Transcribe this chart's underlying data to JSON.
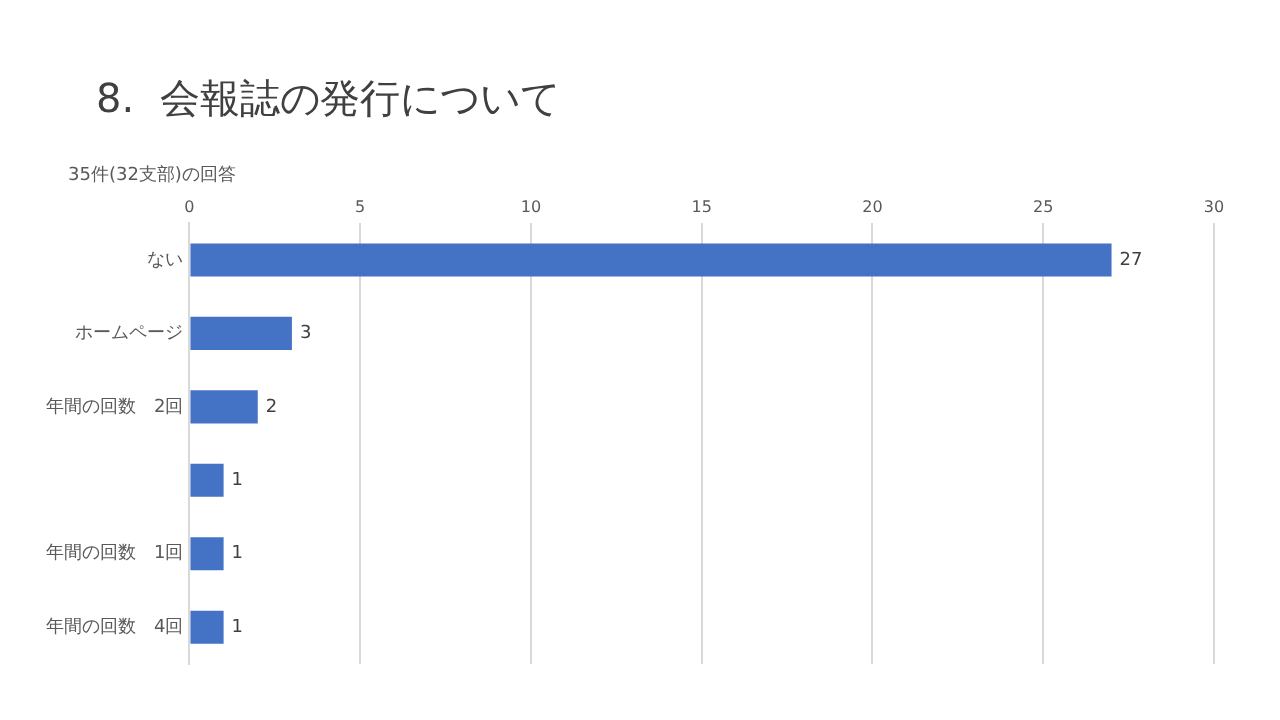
{
  "chart_data": {
    "type": "bar",
    "orientation": "horizontal",
    "title": "8.  会報誌の発行について",
    "subtitle": "35件(32支部)の回答",
    "categories": [
      "ない",
      "ホームページ",
      "年間の回数　2回",
      null,
      "年間の回数　1回",
      "年間の回数　4回"
    ],
    "values": [
      27,
      3,
      2,
      1,
      1,
      1
    ],
    "color": "#4472c4",
    "xlim": [
      0,
      30
    ],
    "xticks": [
      0,
      5,
      10,
      15,
      20,
      25,
      30
    ],
    "grid": "x",
    "data_labels": true
  }
}
